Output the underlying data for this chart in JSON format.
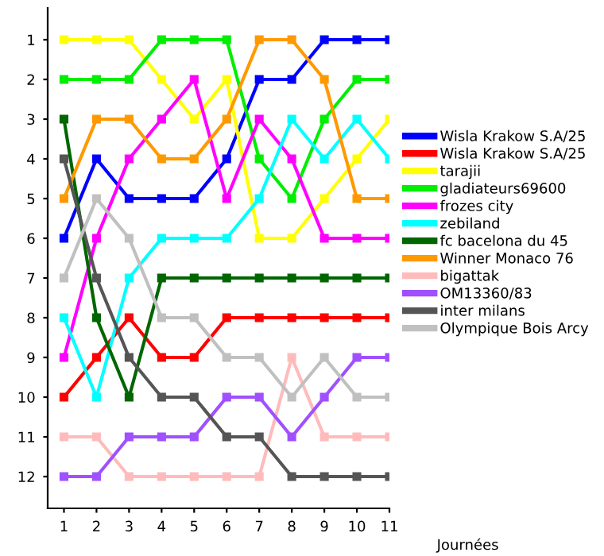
{
  "chart_data": {
    "type": "line",
    "xlabel": "Journées",
    "x": [
      1,
      2,
      3,
      4,
      5,
      6,
      7,
      8,
      9,
      10,
      11
    ],
    "xlim": [
      0.5,
      11
    ],
    "xticks": [
      1,
      2,
      3,
      4,
      5,
      6,
      7,
      8,
      9,
      10,
      11
    ],
    "ylim": [
      12.8,
      0.2
    ],
    "yticks": [
      1,
      2,
      3,
      4,
      5,
      6,
      7,
      8,
      9,
      10,
      11,
      12
    ],
    "marker": "square",
    "line_style": "solid",
    "grid": false,
    "legend": "right",
    "series": [
      {
        "name": "Wisla Krakow S.A/25",
        "color": "#0000ff",
        "values": [
          6,
          4,
          5,
          5,
          5,
          4,
          2,
          2,
          1,
          1,
          1
        ]
      },
      {
        "name": "Wisla Krakow S.A/25",
        "color": "#ff0000",
        "values": [
          10,
          9,
          8,
          9,
          9,
          8,
          8,
          8,
          8,
          8,
          8
        ]
      },
      {
        "name": "tarajii",
        "color": "#ffff00",
        "values": [
          1,
          1,
          1,
          2,
          3,
          2,
          6,
          6,
          5,
          4,
          3
        ]
      },
      {
        "name": "gladiateurs69600",
        "color": "#00ee00",
        "values": [
          2,
          2,
          2,
          1,
          1,
          1,
          4,
          5,
          3,
          2,
          2
        ]
      },
      {
        "name": "frozes city",
        "color": "#ff00ff",
        "values": [
          9,
          6,
          4,
          3,
          2,
          5,
          3,
          4,
          6,
          6,
          6
        ]
      },
      {
        "name": "zebiland",
        "color": "#00ffff",
        "values": [
          8,
          10,
          7,
          6,
          6,
          6,
          5,
          3,
          4,
          3,
          4
        ]
      },
      {
        "name": "fc bacelona du 45",
        "color": "#006600",
        "values": [
          3,
          8,
          10,
          7,
          7,
          7,
          7,
          7,
          7,
          7,
          7
        ]
      },
      {
        "name": "Winner Monaco 76",
        "color": "#ff9900",
        "values": [
          5,
          3,
          3,
          4,
          4,
          3,
          1,
          1,
          2,
          5,
          5
        ]
      },
      {
        "name": "bigattak",
        "color": "#ffbbbb",
        "values": [
          11,
          11,
          12,
          12,
          12,
          12,
          12,
          9,
          11,
          11,
          11
        ]
      },
      {
        "name": "OM13360/83",
        "color": "#a050ff",
        "values": [
          12,
          12,
          11,
          11,
          11,
          10,
          10,
          11,
          10,
          9,
          9
        ]
      },
      {
        "name": "inter milans",
        "color": "#555555",
        "values": [
          4,
          7,
          9,
          10,
          10,
          11,
          11,
          12,
          12,
          12,
          12
        ]
      },
      {
        "name": "Olympique Bois Arcy",
        "color": "#c0c0c0",
        "values": [
          7,
          5,
          6,
          8,
          8,
          9,
          9,
          10,
          9,
          10,
          10
        ]
      }
    ]
  }
}
